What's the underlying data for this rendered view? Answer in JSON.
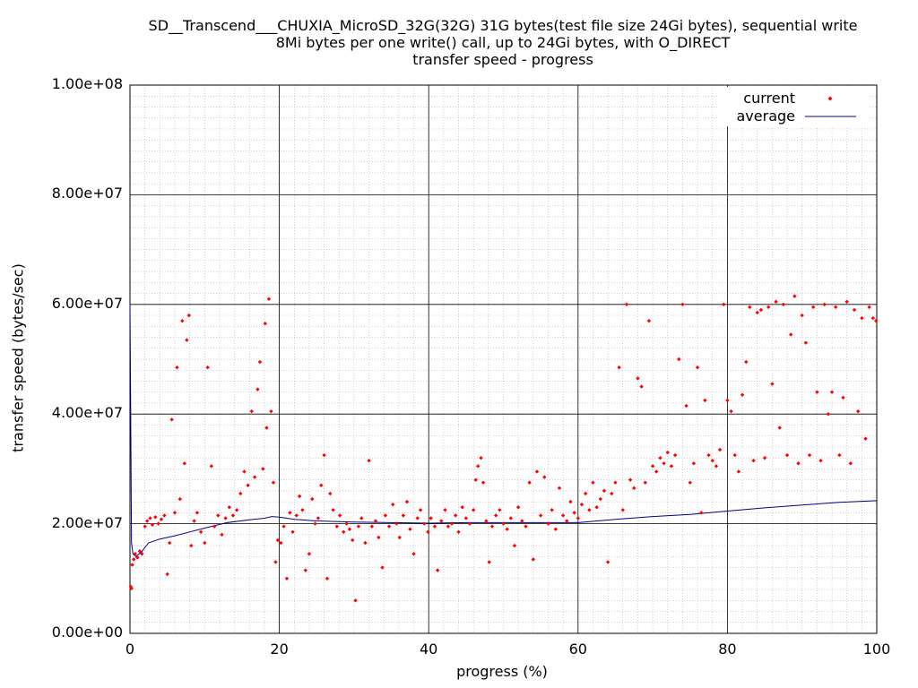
{
  "chart_data": {
    "type": "scatter",
    "title_lines": [
      "SD__Transcend___CHUXIA_MicroSD_32G(32G) 31G bytes(test file size 24Gi bytes), sequential write",
      "8Mi bytes per one write() call, up to 24Gi bytes, with O_DIRECT",
      "transfer speed - progress"
    ],
    "xlabel": "progress (%)",
    "ylabel": "transfer speed (bytes/sec)",
    "xlim": [
      0,
      100
    ],
    "ylim": [
      0,
      100000000
    ],
    "x_ticks": [
      0,
      20,
      40,
      60,
      80,
      100
    ],
    "x_tick_labels": [
      "0",
      "20",
      "40",
      "60",
      "80",
      "100"
    ],
    "y_ticks": [
      0,
      20000000,
      40000000,
      60000000,
      80000000,
      100000000
    ],
    "y_tick_labels": [
      "0.00e+00",
      "2.00e+07",
      "4.00e+07",
      "6.00e+07",
      "8.00e+07",
      "1.00e+08"
    ],
    "grid": true,
    "minor_grid": true,
    "legend_position": "top-right",
    "series": [
      {
        "name": "current",
        "style": "points",
        "color": "#ff0000",
        "points": [
          [
            0.1,
            8500000
          ],
          [
            0.2,
            8200000
          ],
          [
            0.3,
            12500000
          ],
          [
            0.5,
            13500000
          ],
          [
            0.7,
            14500000
          ],
          [
            1.0,
            13800000
          ],
          [
            1.3,
            15000000
          ],
          [
            1.6,
            14500000
          ],
          [
            2.0,
            19500000
          ],
          [
            2.3,
            20500000
          ],
          [
            2.7,
            21000000
          ],
          [
            3.0,
            19800000
          ],
          [
            3.4,
            21200000
          ],
          [
            3.8,
            20000000
          ],
          [
            4.2,
            20800000
          ],
          [
            4.6,
            21500000
          ],
          [
            5.0,
            10800000
          ],
          [
            5.3,
            16500000
          ],
          [
            5.6,
            39000000
          ],
          [
            6.0,
            22000000
          ],
          [
            6.3,
            48500000
          ],
          [
            6.7,
            24500000
          ],
          [
            7.0,
            57000000
          ],
          [
            7.3,
            31000000
          ],
          [
            7.6,
            53500000
          ],
          [
            7.9,
            58000000
          ],
          [
            8.2,
            16000000
          ],
          [
            8.6,
            20500000
          ],
          [
            9.0,
            22000000
          ],
          [
            9.5,
            18500000
          ],
          [
            10.0,
            16500000
          ],
          [
            10.4,
            48500000
          ],
          [
            10.9,
            30500000
          ],
          [
            11.3,
            19500000
          ],
          [
            11.8,
            21500000
          ],
          [
            12.3,
            18000000
          ],
          [
            12.8,
            21000000
          ],
          [
            13.3,
            23000000
          ],
          [
            13.8,
            21500000
          ],
          [
            14.3,
            22500000
          ],
          [
            14.8,
            25500000
          ],
          [
            15.3,
            29500000
          ],
          [
            15.8,
            27000000
          ],
          [
            16.3,
            40500000
          ],
          [
            16.7,
            28500000
          ],
          [
            17.1,
            44500000
          ],
          [
            17.4,
            49500000
          ],
          [
            17.8,
            30000000
          ],
          [
            18.1,
            56500000
          ],
          [
            18.3,
            37500000
          ],
          [
            18.6,
            61000000
          ],
          [
            18.9,
            40500000
          ],
          [
            19.2,
            27500000
          ],
          [
            19.5,
            13000000
          ],
          [
            19.8,
            17000000
          ],
          [
            20.2,
            16500000
          ],
          [
            20.6,
            19500000
          ],
          [
            21.0,
            10000000
          ],
          [
            21.4,
            22000000
          ],
          [
            21.8,
            18500000
          ],
          [
            22.3,
            21500000
          ],
          [
            22.7,
            25000000
          ],
          [
            23.1,
            22500000
          ],
          [
            23.5,
            11500000
          ],
          [
            24.0,
            14500000
          ],
          [
            24.4,
            24500000
          ],
          [
            24.8,
            20000000
          ],
          [
            25.2,
            21000000
          ],
          [
            25.6,
            27000000
          ],
          [
            26.0,
            32500000
          ],
          [
            26.4,
            10000000
          ],
          [
            26.8,
            25500000
          ],
          [
            27.2,
            22500000
          ],
          [
            27.7,
            19500000
          ],
          [
            28.1,
            21500000
          ],
          [
            28.6,
            18500000
          ],
          [
            29.0,
            20000000
          ],
          [
            29.4,
            19000000
          ],
          [
            29.8,
            17000000
          ],
          [
            30.2,
            6000000
          ],
          [
            30.6,
            19500000
          ],
          [
            31.0,
            21000000
          ],
          [
            31.5,
            16500000
          ],
          [
            32.0,
            31500000
          ],
          [
            32.4,
            19500000
          ],
          [
            32.9,
            20500000
          ],
          [
            33.3,
            17500000
          ],
          [
            33.8,
            12000000
          ],
          [
            34.2,
            21500000
          ],
          [
            34.7,
            19500000
          ],
          [
            35.2,
            23500000
          ],
          [
            35.7,
            20000000
          ],
          [
            36.1,
            17500000
          ],
          [
            36.6,
            21500000
          ],
          [
            37.1,
            24000000
          ],
          [
            37.5,
            19000000
          ],
          [
            38.0,
            14500000
          ],
          [
            38.5,
            21000000
          ],
          [
            38.9,
            22500000
          ],
          [
            39.4,
            20000000
          ],
          [
            39.9,
            18500000
          ],
          [
            40.3,
            21000000
          ],
          [
            40.8,
            19500000
          ],
          [
            41.2,
            11500000
          ],
          [
            41.7,
            20500000
          ],
          [
            42.2,
            22500000
          ],
          [
            42.6,
            19500000
          ],
          [
            43.1,
            20000000
          ],
          [
            43.6,
            21500000
          ],
          [
            44.0,
            18500000
          ],
          [
            44.5,
            23000000
          ],
          [
            45.0,
            21000000
          ],
          [
            45.5,
            20000000
          ],
          [
            46.0,
            22500000
          ],
          [
            46.3,
            28000000
          ],
          [
            46.6,
            30500000
          ],
          [
            47.0,
            32000000
          ],
          [
            47.3,
            27500000
          ],
          [
            47.7,
            20500000
          ],
          [
            48.1,
            13000000
          ],
          [
            48.5,
            19500000
          ],
          [
            49.0,
            21500000
          ],
          [
            49.5,
            22500000
          ],
          [
            50.0,
            20000000
          ],
          [
            50.5,
            19000000
          ],
          [
            51.0,
            21000000
          ],
          [
            51.5,
            16000000
          ],
          [
            52.0,
            23000000
          ],
          [
            52.5,
            20500000
          ],
          [
            53.0,
            19500000
          ],
          [
            53.5,
            27500000
          ],
          [
            54.0,
            13500000
          ],
          [
            54.5,
            29500000
          ],
          [
            55.0,
            21500000
          ],
          [
            55.5,
            28500000
          ],
          [
            56.0,
            20000000
          ],
          [
            56.5,
            22500000
          ],
          [
            57.0,
            19000000
          ],
          [
            57.5,
            26500000
          ],
          [
            58.0,
            21500000
          ],
          [
            58.5,
            20500000
          ],
          [
            59.0,
            24000000
          ],
          [
            59.5,
            22000000
          ],
          [
            60.0,
            21000000
          ],
          [
            60.5,
            23500000
          ],
          [
            61.0,
            25500000
          ],
          [
            61.5,
            22500000
          ],
          [
            62.0,
            27500000
          ],
          [
            62.5,
            23000000
          ],
          [
            63.0,
            24500000
          ],
          [
            63.5,
            26000000
          ],
          [
            64.0,
            13000000
          ],
          [
            64.5,
            25500000
          ],
          [
            65.0,
            27500000
          ],
          [
            65.5,
            48500000
          ],
          [
            66.0,
            22500000
          ],
          [
            66.5,
            60000000
          ],
          [
            67.0,
            28000000
          ],
          [
            67.5,
            26500000
          ],
          [
            68.0,
            46500000
          ],
          [
            68.5,
            45000000
          ],
          [
            69.0,
            27500000
          ],
          [
            69.5,
            57000000
          ],
          [
            70.0,
            30500000
          ],
          [
            70.5,
            29500000
          ],
          [
            71.0,
            32000000
          ],
          [
            71.5,
            31000000
          ],
          [
            72.0,
            33000000
          ],
          [
            72.5,
            30500000
          ],
          [
            73.0,
            32500000
          ],
          [
            73.5,
            50000000
          ],
          [
            74.0,
            60000000
          ],
          [
            74.5,
            41500000
          ],
          [
            75.0,
            27500000
          ],
          [
            75.5,
            31000000
          ],
          [
            76.0,
            48500000
          ],
          [
            76.5,
            22000000
          ],
          [
            77.0,
            42500000
          ],
          [
            77.5,
            32500000
          ],
          [
            78.0,
            31500000
          ],
          [
            78.5,
            30500000
          ],
          [
            79.0,
            33500000
          ],
          [
            79.5,
            60000000
          ],
          [
            80.0,
            42500000
          ],
          [
            80.5,
            40500000
          ],
          [
            81.0,
            32500000
          ],
          [
            81.5,
            29500000
          ],
          [
            82.0,
            43500000
          ],
          [
            82.5,
            49500000
          ],
          [
            83.0,
            59500000
          ],
          [
            83.5,
            31500000
          ],
          [
            84.0,
            58500000
          ],
          [
            84.5,
            59000000
          ],
          [
            85.0,
            32000000
          ],
          [
            85.5,
            59500000
          ],
          [
            86.0,
            45500000
          ],
          [
            86.5,
            60500000
          ],
          [
            87.0,
            37500000
          ],
          [
            87.5,
            60000000
          ],
          [
            88.0,
            32500000
          ],
          [
            88.5,
            54500000
          ],
          [
            89.0,
            61500000
          ],
          [
            89.5,
            31000000
          ],
          [
            90.0,
            58000000
          ],
          [
            90.5,
            53000000
          ],
          [
            91.0,
            32500000
          ],
          [
            91.5,
            59500000
          ],
          [
            92.0,
            44000000
          ],
          [
            92.5,
            31500000
          ],
          [
            93.0,
            60000000
          ],
          [
            93.5,
            40000000
          ],
          [
            94.0,
            44000000
          ],
          [
            94.5,
            59500000
          ],
          [
            95.0,
            32500000
          ],
          [
            95.5,
            43000000
          ],
          [
            96.0,
            60500000
          ],
          [
            96.5,
            31000000
          ],
          [
            97.0,
            59000000
          ],
          [
            97.5,
            40500000
          ],
          [
            98.0,
            57500000
          ],
          [
            98.5,
            35500000
          ],
          [
            99.0,
            59500000
          ],
          [
            99.5,
            57500000
          ],
          [
            99.9,
            57000000
          ]
        ]
      },
      {
        "name": "average",
        "style": "line",
        "color": "#00008b",
        "points": [
          [
            0.0,
            60000000
          ],
          [
            0.1,
            40000000
          ],
          [
            0.2,
            16500000
          ],
          [
            0.4,
            14500000
          ],
          [
            0.8,
            14000000
          ],
          [
            1.5,
            14800000
          ],
          [
            2.5,
            16500000
          ],
          [
            4.0,
            17200000
          ],
          [
            6.0,
            17800000
          ],
          [
            8.0,
            18500000
          ],
          [
            10.0,
            19200000
          ],
          [
            13.0,
            20200000
          ],
          [
            16.0,
            20700000
          ],
          [
            18.0,
            21000000
          ],
          [
            19.0,
            21300000
          ],
          [
            20.0,
            21200000
          ],
          [
            22.0,
            20800000
          ],
          [
            25.0,
            20500000
          ],
          [
            30.0,
            20300000
          ],
          [
            35.0,
            20200000
          ],
          [
            40.0,
            20100000
          ],
          [
            45.0,
            20200000
          ],
          [
            50.0,
            20200000
          ],
          [
            55.0,
            20200000
          ],
          [
            60.0,
            20200000
          ],
          [
            65.0,
            20800000
          ],
          [
            70.0,
            21300000
          ],
          [
            75.0,
            21700000
          ],
          [
            80.0,
            22300000
          ],
          [
            85.0,
            22900000
          ],
          [
            90.0,
            23400000
          ],
          [
            95.0,
            23900000
          ],
          [
            100.0,
            24200000
          ]
        ]
      }
    ]
  }
}
